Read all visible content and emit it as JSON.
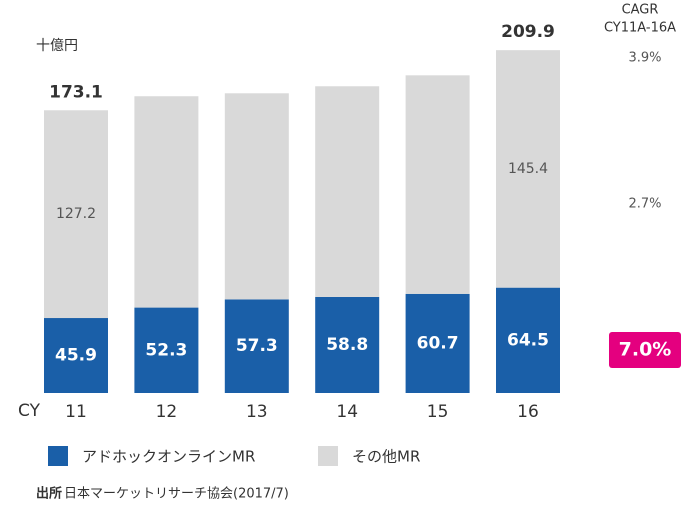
{
  "chart_data": {
    "type": "bar",
    "stacked": true,
    "unit_label": "十億円",
    "x_label": "CY",
    "categories": [
      "11",
      "12",
      "13",
      "14",
      "15",
      "16"
    ],
    "series": [
      {
        "name": "アドホックオンラインMR",
        "color": "#1a5fa8",
        "values": [
          45.9,
          52.3,
          57.3,
          58.8,
          60.7,
          64.5
        ]
      },
      {
        "name": "その他MR",
        "color": "#d9d9d9",
        "values": [
          127.2,
          129.4,
          126.2,
          129.0,
          133.8,
          145.4
        ],
        "value_labels": [
          "127.2",
          null,
          null,
          null,
          null,
          "145.4"
        ]
      }
    ],
    "totals": [
      173.1,
      null,
      null,
      null,
      null,
      209.9
    ],
    "ylim": [
      0,
      240
    ],
    "cagr": {
      "title": "CAGR",
      "subtitle": "CY11A-16A",
      "labels": [
        "3.9%",
        "2.7%",
        "7.0%"
      ],
      "highlight_color": "#e4007f"
    },
    "source": {
      "label": "出所",
      "text": "日本マーケットリサーチ協会(2017/7)"
    }
  }
}
